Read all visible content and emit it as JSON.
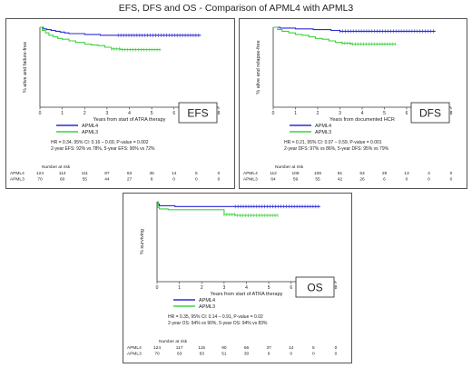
{
  "page_title": "EFS, DFS and OS - Comparison of APML4 with APML3",
  "colors": {
    "apml4": "#2b2bd6",
    "apml3": "#3ed23e",
    "axis": "#333333"
  },
  "chart_data": [
    {
      "id": "efs",
      "type": "line",
      "panel_label": "EFS",
      "ylabel": "% alive and failure-free",
      "xlabel": "Years from start of ATRA therapy",
      "xlim": [
        0,
        8
      ],
      "ylim": [
        0,
        100
      ],
      "xticks": [
        "0",
        "1",
        "2",
        "3",
        "4",
        "5",
        "6",
        "7",
        "8"
      ],
      "legend": "center-left",
      "series": [
        {
          "name": "APML4",
          "color": "#2b2bd6",
          "x": [
            0,
            0.15,
            0.3,
            0.5,
            0.7,
            0.9,
            1.1,
            1.3,
            1.6,
            2.0,
            2.4,
            2.7,
            3.0,
            3.5,
            4.5,
            5.5,
            6.5,
            7.2
          ],
          "y": [
            100,
            98,
            97,
            96,
            95,
            94,
            93,
            92,
            92,
            91,
            91,
            90,
            90,
            90,
            90,
            90,
            90,
            90
          ]
        },
        {
          "name": "APML3",
          "color": "#3ed23e",
          "x": [
            0,
            0.1,
            0.25,
            0.4,
            0.6,
            0.8,
            1.0,
            1.3,
            1.6,
            2.0,
            2.3,
            2.6,
            2.9,
            3.2,
            3.6,
            4.2,
            4.8,
            5.4
          ],
          "y": [
            100,
            96,
            93,
            90,
            88,
            86,
            85,
            83,
            81,
            79,
            78,
            77,
            75,
            73,
            72,
            72,
            72,
            72
          ]
        }
      ],
      "stats": [
        "HR = 0.34, 95% CI: 0.16 – 0.69, P-value = 0.002",
        "2-year EFS: 92% vs 78%, 5-year EFS: 90% vs 72%"
      ],
      "risk_header": "Number at risk",
      "risk": [
        {
          "name": "APML4",
          "counts": [
            "124",
            "114",
            "111",
            "87",
            "63",
            "35",
            "14",
            "5",
            "0"
          ]
        },
        {
          "name": "APML3",
          "counts": [
            "70",
            "60",
            "55",
            "44",
            "27",
            "8",
            "0",
            "0",
            "0"
          ]
        }
      ]
    },
    {
      "id": "dfs",
      "type": "line",
      "panel_label": "DFS",
      "ylabel": "% alive and relapse-free",
      "xlabel": "Years from documented HCR",
      "xlim": [
        0,
        8
      ],
      "ylim": [
        0,
        100
      ],
      "xticks": [
        "0",
        "1",
        "2",
        "3",
        "4",
        "5",
        "6",
        "7",
        "8"
      ],
      "legend": "center-left",
      "series": [
        {
          "name": "APML4",
          "color": "#2b2bd6",
          "x": [
            0,
            0.3,
            0.6,
            1.0,
            1.4,
            1.8,
            2.2,
            2.6,
            3.0,
            4.0,
            5.0,
            6.0,
            7.3
          ],
          "y": [
            100,
            99,
            99,
            98,
            98,
            97,
            97,
            96,
            95,
            95,
            95,
            95,
            95
          ]
        },
        {
          "name": "APML3",
          "color": "#3ed23e",
          "x": [
            0,
            0.2,
            0.4,
            0.7,
            1.0,
            1.3,
            1.6,
            1.9,
            2.2,
            2.5,
            2.8,
            3.1,
            3.5,
            4.0,
            4.8,
            5.5
          ],
          "y": [
            100,
            97,
            95,
            93,
            91,
            90,
            88,
            86,
            85,
            83,
            81,
            80,
            79,
            79,
            79,
            79
          ]
        }
      ],
      "stats": [
        "HR = 0.21, 95% CI: 0.07 – 0.59, P-value = 0.001",
        "2-year DFS: 97% vs 86%, 5-year DFS: 95% vs 79%"
      ],
      "risk_header": "Number at risk",
      "risk": [
        {
          "name": "APML4",
          "counts": [
            "112",
            "108",
            "106",
            "81",
            "53",
            "29",
            "13",
            "3",
            "0"
          ]
        },
        {
          "name": "APML3",
          "counts": [
            "64",
            "59",
            "55",
            "42",
            "26",
            "6",
            "0",
            "0",
            "0"
          ]
        }
      ]
    },
    {
      "id": "os",
      "type": "line",
      "panel_label": "OS",
      "ylabel": "% surviving",
      "xlabel": "Years from start of ATRA therapy",
      "xlim": [
        0,
        8
      ],
      "ylim": [
        0,
        100
      ],
      "xticks": [
        "0",
        "1",
        "2",
        "3",
        "4",
        "5",
        "6",
        "7",
        "8"
      ],
      "legend": "center-left",
      "series": [
        {
          "name": "APML4",
          "color": "#2b2bd6",
          "x": [
            0,
            0.05,
            0.1,
            0.3,
            0.8,
            1.5,
            2.5,
            3.5,
            4.5,
            5.5,
            6.5,
            7.3
          ],
          "y": [
            100,
            97,
            95,
            95,
            94,
            94,
            94,
            94,
            94,
            94,
            94,
            94
          ]
        },
        {
          "name": "APML3",
          "color": "#3ed23e",
          "x": [
            0,
            0.05,
            0.1,
            0.5,
            1.0,
            1.5,
            2.0,
            2.5,
            2.9,
            3.0,
            3.5,
            4.2,
            4.8,
            5.4
          ],
          "y": [
            100,
            93,
            91,
            90,
            90,
            90,
            90,
            90,
            90,
            84,
            83,
            83,
            83,
            83
          ]
        }
      ],
      "stats": [
        "HR = 0.35, 95% CI: 0.14 – 0.91, P-value = 0.02",
        "2-year OS: 94% vs 90%, 5-year OS: 94% vs 83%"
      ],
      "risk_header": "Number at risk",
      "risk": [
        {
          "name": "APML4",
          "counts": [
            "124",
            "117",
            "115",
            "90",
            "66",
            "37",
            "14",
            "5",
            "0"
          ]
        },
        {
          "name": "APML3",
          "counts": [
            "70",
            "63",
            "63",
            "51",
            "30",
            "9",
            "0",
            "0",
            "0"
          ]
        }
      ]
    }
  ]
}
